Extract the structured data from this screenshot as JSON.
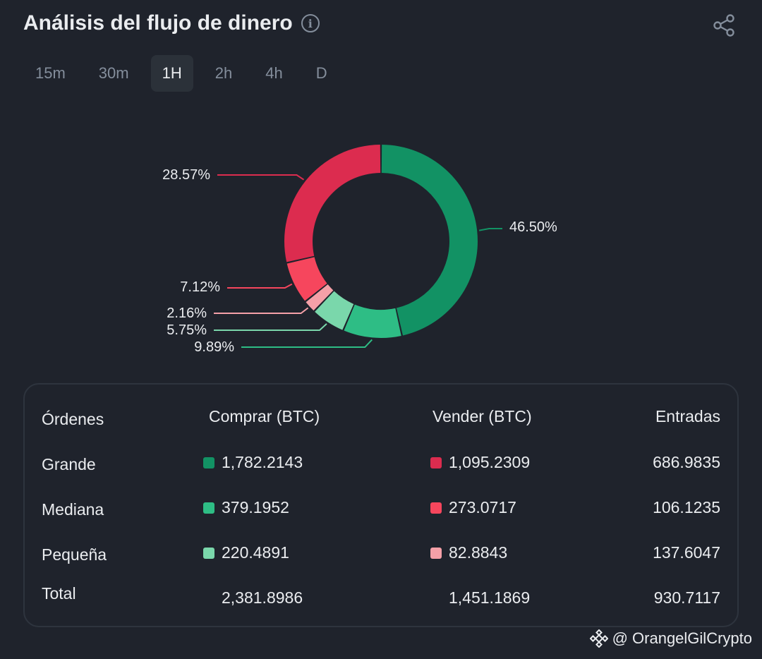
{
  "header": {
    "title": "Análisis del flujo de dinero",
    "info_glyph": "i"
  },
  "tabs": [
    {
      "label": "15m",
      "active": false
    },
    {
      "label": "30m",
      "active": false
    },
    {
      "label": "1H",
      "active": true
    },
    {
      "label": "2h",
      "active": false
    },
    {
      "label": "4h",
      "active": false
    },
    {
      "label": "D",
      "active": false
    }
  ],
  "chart_data": {
    "type": "pie",
    "variant": "donut",
    "slices": [
      {
        "label": "46.50%",
        "value": 46.5,
        "color": "#129264"
      },
      {
        "label": "9.89%",
        "value": 9.89,
        "color": "#2ebd85"
      },
      {
        "label": "5.75%",
        "value": 5.75,
        "color": "#7ad7ab"
      },
      {
        "label": "2.16%",
        "value": 2.16,
        "color": "#f5a0a8"
      },
      {
        "label": "7.12%",
        "value": 7.12,
        "color": "#f6465d"
      },
      {
        "label": "28.57%",
        "value": 28.57,
        "color": "#dc2c4f"
      }
    ]
  },
  "table": {
    "headers": [
      "Órdenes",
      "Comprar (BTC)",
      "Vender (BTC)",
      "Entradas"
    ],
    "rows": [
      {
        "label": "Grande",
        "buy": "1,782.2143",
        "sell": "1,095.2309",
        "inflow": "686.9835",
        "buy_color": "#129264",
        "sell_color": "#dc2c4f"
      },
      {
        "label": "Mediana",
        "buy": "379.1952",
        "sell": "273.0717",
        "inflow": "106.1235",
        "buy_color": "#2ebd85",
        "sell_color": "#f6465d"
      },
      {
        "label": "Pequeña",
        "buy": "220.4891",
        "sell": "82.8843",
        "inflow": "137.6047",
        "buy_color": "#7ad7ab",
        "sell_color": "#f5a0a8"
      }
    ],
    "total": {
      "label": "Total",
      "buy": "2,381.8986",
      "sell": "1,451.1869",
      "inflow": "930.7117"
    }
  },
  "watermark": "@ OrangelGilCrypto",
  "icons": {
    "share": "share-icon",
    "info": "info-icon",
    "brand": "binance-logo-icon"
  }
}
